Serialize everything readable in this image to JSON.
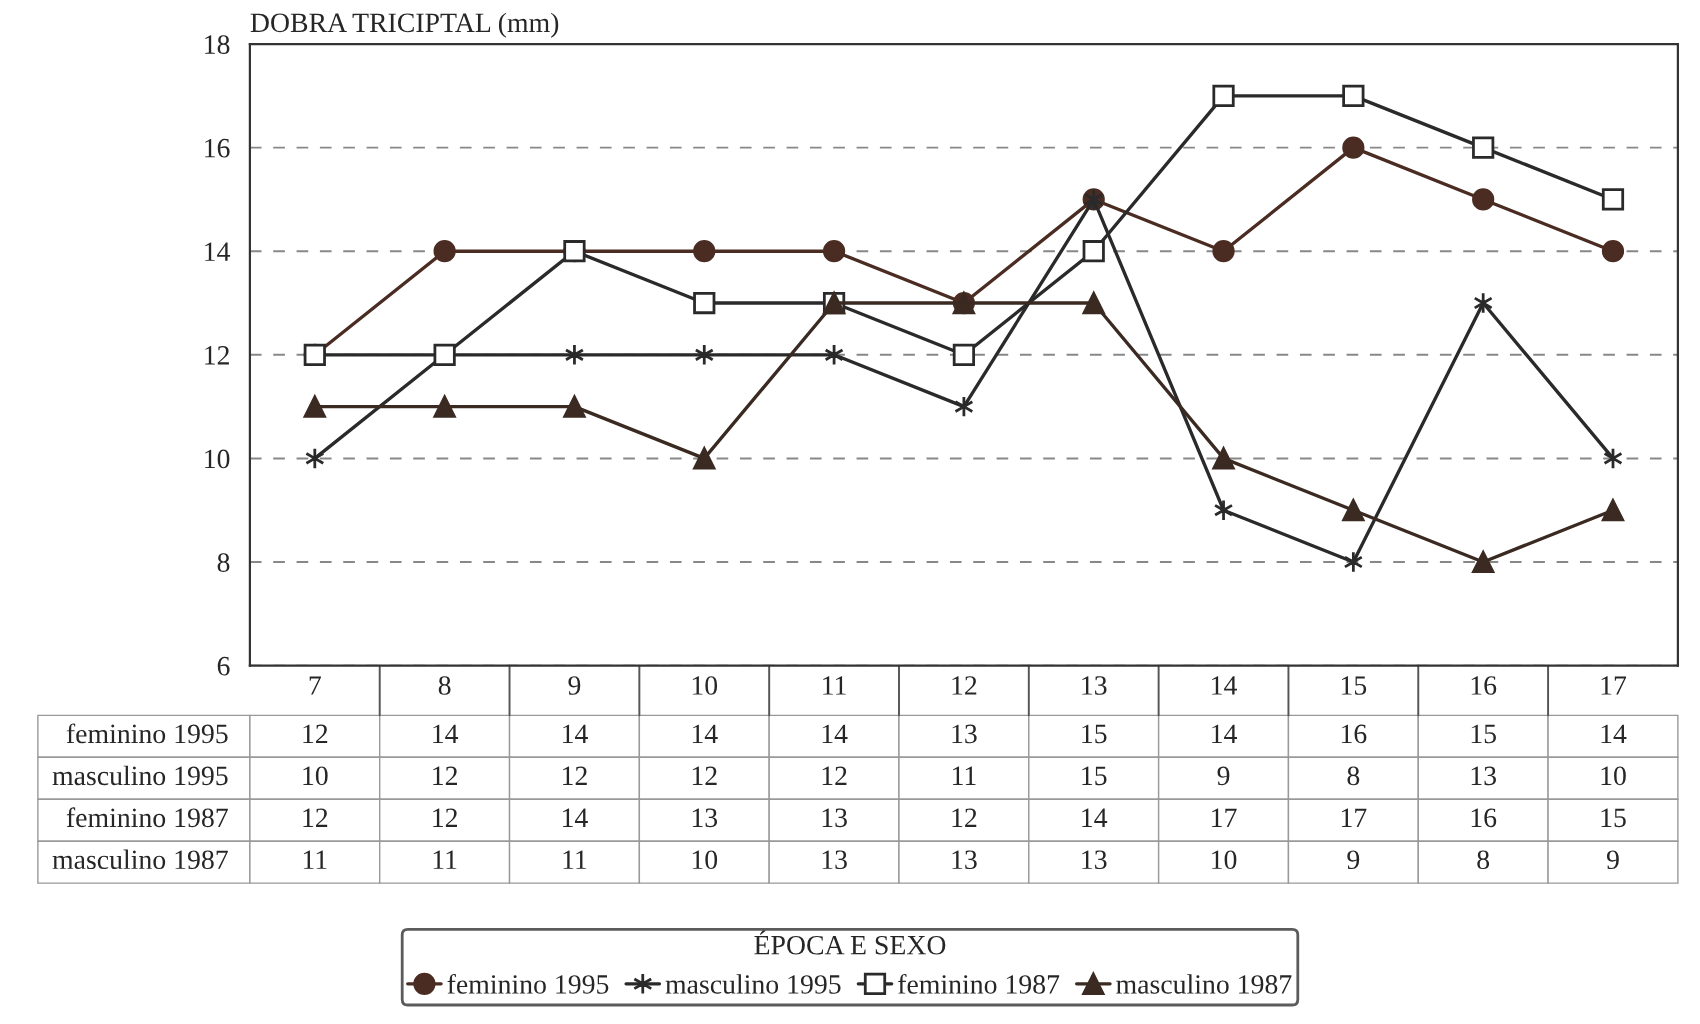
{
  "chart_data": {
    "type": "line",
    "ylabel": "DOBRA TRICIPTAL (mm)",
    "legend_title": "ÉPOCA E SEXO",
    "categories": [
      "7",
      "8",
      "9",
      "10",
      "11",
      "12",
      "13",
      "14",
      "15",
      "16",
      "17"
    ],
    "series": [
      {
        "name": "feminino 1995",
        "color": "#4a2c22",
        "marker": "circle",
        "values": [
          12,
          14,
          14,
          14,
          14,
          13,
          15,
          14,
          16,
          15,
          14
        ]
      },
      {
        "name": "masculino 1995",
        "color": "#2a2a2a",
        "marker": "cross",
        "values": [
          10,
          12,
          12,
          12,
          12,
          11,
          15,
          9,
          8,
          13,
          10
        ]
      },
      {
        "name": "feminino 1987",
        "color": "#2a2a2a",
        "marker": "square",
        "values": [
          12,
          12,
          14,
          13,
          13,
          12,
          14,
          17,
          17,
          16,
          15
        ]
      },
      {
        "name": "masculino 1987",
        "color": "#3a2a22",
        "marker": "triangle",
        "values": [
          11,
          11,
          11,
          10,
          13,
          13,
          13,
          10,
          9,
          8,
          9
        ]
      }
    ],
    "ylim": [
      6,
      18
    ],
    "yticks": [
      6,
      8,
      10,
      12,
      14,
      16,
      18
    ],
    "grid": "y",
    "legend": "bottom",
    "data_labels": true,
    "line_style": "solid"
  }
}
